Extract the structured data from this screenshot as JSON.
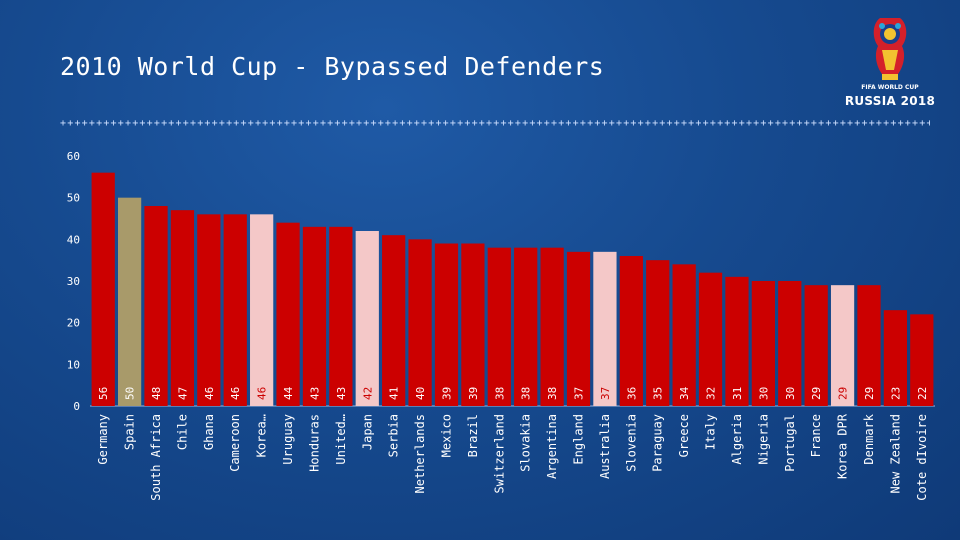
{
  "slide": {
    "title": "2010 World Cup - Bypassed Defenders",
    "logo_line1": "FIFA WORLD CUP",
    "logo_line2": "RUSSIA 2018"
  },
  "colors": {
    "red_bar": "#cc0000",
    "gold_bar": "#a89a6a",
    "light_bar": "#f4c8c8",
    "axis_text": "#ffffff"
  },
  "chart_data": {
    "type": "bar",
    "title": "2010 World Cup - Bypassed Defenders",
    "xlabel": "",
    "ylabel": "",
    "ylim": [
      0,
      60
    ],
    "yticks": [
      0,
      10,
      20,
      30,
      40,
      50,
      60
    ],
    "grid": false,
    "categories": [
      "Germany",
      "Spain",
      "South Africa",
      "Chile",
      "Ghana",
      "Cameroon",
      "Korea…",
      "Uruguay",
      "Honduras",
      "United…",
      "Japan",
      "Serbia",
      "Netherlands",
      "Mexico",
      "Brazil",
      "Switzerland",
      "Slovakia",
      "Argentina",
      "England",
      "Australia",
      "Slovenia",
      "Paraguay",
      "Greece",
      "Italy",
      "Algeria",
      "Nigeria",
      "Portugal",
      "France",
      "Korea DPR",
      "Denmark",
      "New Zealand",
      "Cote dIvoire"
    ],
    "values": [
      56,
      50,
      48,
      47,
      46,
      46,
      46,
      44,
      43,
      43,
      42,
      41,
      40,
      39,
      39,
      38,
      38,
      38,
      37,
      37,
      36,
      35,
      34,
      32,
      31,
      30,
      30,
      29,
      29,
      29,
      23,
      22
    ],
    "bar_colors": [
      "red",
      "gold",
      "red",
      "red",
      "red",
      "red",
      "light",
      "red",
      "red",
      "red",
      "light",
      "red",
      "red",
      "red",
      "red",
      "red",
      "red",
      "red",
      "red",
      "light",
      "red",
      "red",
      "red",
      "red",
      "red",
      "red",
      "red",
      "red",
      "light",
      "red",
      "red",
      "red"
    ]
  }
}
